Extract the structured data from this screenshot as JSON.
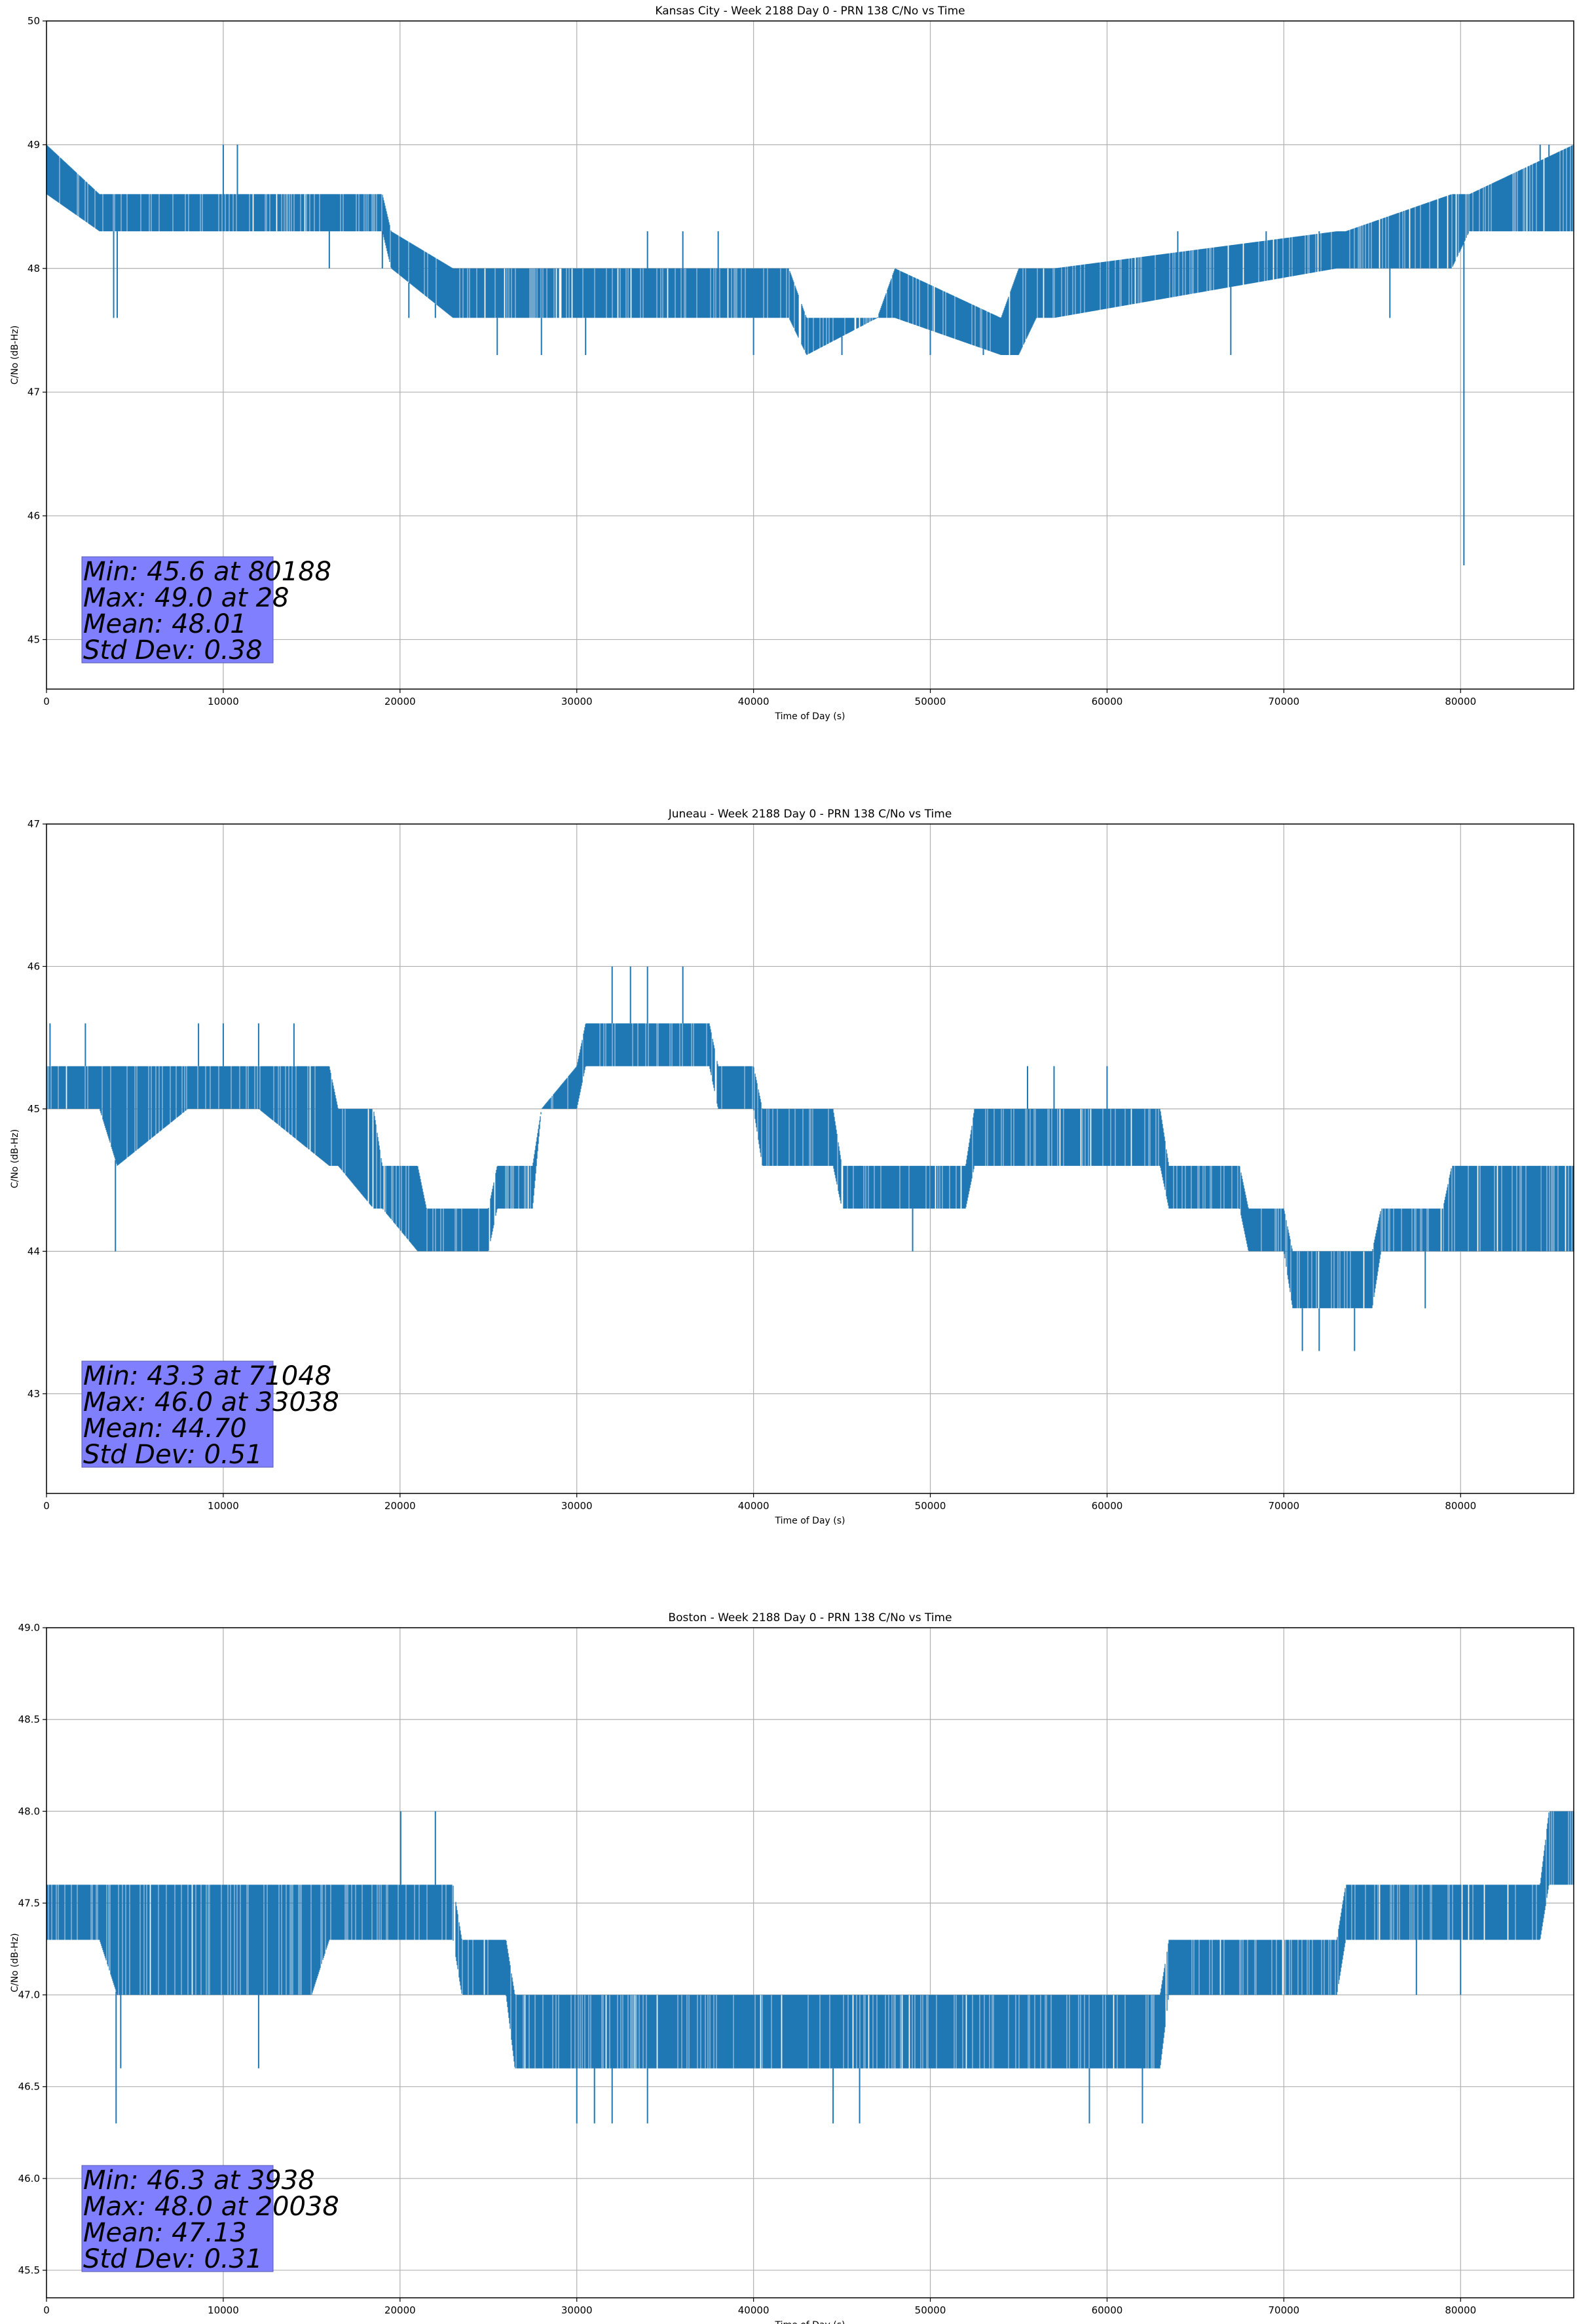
{
  "chart_data": [
    {
      "type": "line",
      "title": "Kansas City - Week 2188 Day 0 - PRN 138 C/No vs Time",
      "xlabel": "Time of Day (s)",
      "ylabel": "C/No (dB-Hz)",
      "xlim": [
        0,
        86400
      ],
      "ylim": [
        44.6,
        50
      ],
      "xticks": [
        0,
        10000,
        20000,
        30000,
        40000,
        50000,
        60000,
        70000,
        80000
      ],
      "xtick_labels": [
        "0",
        "10000",
        "20000",
        "30000",
        "40000",
        "50000",
        "60000",
        "70000",
        "80000"
      ],
      "yticks": [
        45,
        46,
        47,
        48,
        49,
        50
      ],
      "ytick_labels": [
        "45",
        "46",
        "47",
        "48",
        "49",
        "50"
      ],
      "grid": true,
      "series_color": "#1f77b4",
      "series": [
        {
          "name": "PRN 138 C/No",
          "band_x": [
            0,
            3000,
            4000,
            19000,
            19500,
            23000,
            42000,
            43000,
            47000,
            48000,
            54000,
            55000,
            56000,
            57000,
            73000,
            73500,
            79500,
            80500,
            86400
          ],
          "band_lo": [
            48.6,
            48.3,
            48.3,
            48.3,
            48.0,
            47.6,
            47.6,
            47.3,
            47.6,
            47.6,
            47.3,
            47.3,
            47.6,
            47.6,
            48.0,
            48.0,
            48.0,
            48.3,
            48.3
          ],
          "band_hi": [
            49.0,
            48.6,
            48.6,
            48.6,
            48.3,
            48.0,
            48.0,
            47.6,
            47.6,
            48.0,
            47.6,
            48.0,
            48.0,
            48.0,
            48.3,
            48.3,
            48.6,
            48.6,
            49.0
          ],
          "spikes": [
            [
              3800,
              47.6
            ],
            [
              4000,
              47.6
            ],
            [
              10000,
              49.0
            ],
            [
              10800,
              49.0
            ],
            [
              16000,
              48.0
            ],
            [
              19000,
              48.0
            ],
            [
              20500,
              47.6
            ],
            [
              22000,
              47.6
            ],
            [
              25500,
              47.3
            ],
            [
              28000,
              47.3
            ],
            [
              30500,
              47.3
            ],
            [
              34000,
              48.3
            ],
            [
              36000,
              48.3
            ],
            [
              38000,
              48.3
            ],
            [
              40000,
              47.3
            ],
            [
              45000,
              47.3
            ],
            [
              50000,
              47.3
            ],
            [
              53000,
              47.3
            ],
            [
              55000,
              47.3
            ],
            [
              64000,
              48.3
            ],
            [
              67000,
              47.3
            ],
            [
              69000,
              48.3
            ],
            [
              72000,
              48.3
            ],
            [
              76000,
              47.6
            ],
            [
              80188,
              45.6
            ],
            [
              84500,
              49.0
            ],
            [
              85000,
              49.0
            ]
          ]
        }
      ],
      "stats": [
        "Min: 45.6 at 80188",
        "Max: 49.0 at 28",
        "Mean: 48.01",
        "Std Dev: 0.38"
      ]
    },
    {
      "type": "line",
      "title": "Juneau - Week 2188 Day 0 - PRN 138 C/No vs Time",
      "xlabel": "Time of Day (s)",
      "ylabel": "C/No (dB-Hz)",
      "xlim": [
        0,
        86400
      ],
      "ylim": [
        42.3,
        47
      ],
      "xticks": [
        0,
        10000,
        20000,
        30000,
        40000,
        50000,
        60000,
        70000,
        80000
      ],
      "xtick_labels": [
        "0",
        "10000",
        "20000",
        "30000",
        "40000",
        "50000",
        "60000",
        "70000",
        "80000"
      ],
      "yticks": [
        43,
        44,
        45,
        46,
        47
      ],
      "ytick_labels": [
        "43",
        "44",
        "45",
        "46",
        "47"
      ],
      "grid": true,
      "series_color": "#1f77b4",
      "series": [
        {
          "name": "PRN 138 C/No",
          "band_x": [
            0,
            3000,
            4000,
            8000,
            12000,
            16000,
            16500,
            18500,
            19000,
            21000,
            21500,
            25000,
            25500,
            27500,
            28000,
            30000,
            30500,
            37500,
            38000,
            40000,
            40500,
            44500,
            45000,
            52000,
            52500,
            60000,
            60500,
            63000,
            63500,
            67500,
            68000,
            70000,
            70500,
            75000,
            75500,
            79000,
            79500,
            86400
          ],
          "band_lo": [
            45.0,
            45.0,
            44.6,
            45.0,
            45.0,
            44.6,
            44.6,
            44.3,
            44.3,
            44.0,
            44.0,
            44.0,
            44.3,
            44.3,
            45.0,
            45.0,
            45.3,
            45.3,
            45.0,
            45.0,
            44.6,
            44.6,
            44.3,
            44.3,
            44.6,
            44.6,
            44.6,
            44.6,
            44.3,
            44.3,
            44.0,
            44.0,
            43.6,
            43.6,
            44.0,
            44.0,
            44.0,
            44.0
          ],
          "band_hi": [
            45.3,
            45.3,
            45.3,
            45.3,
            45.3,
            45.3,
            45.0,
            45.0,
            44.6,
            44.6,
            44.3,
            44.3,
            44.6,
            44.6,
            45.0,
            45.3,
            45.6,
            45.6,
            45.3,
            45.3,
            45.0,
            45.0,
            44.6,
            44.6,
            45.0,
            45.0,
            45.0,
            45.0,
            44.6,
            44.6,
            44.3,
            44.3,
            44.0,
            44.0,
            44.3,
            44.3,
            44.6,
            44.6
          ],
          "spikes": [
            [
              200,
              45.6
            ],
            [
              2200,
              45.6
            ],
            [
              3900,
              44.0
            ],
            [
              8600,
              45.6
            ],
            [
              10000,
              45.6
            ],
            [
              12000,
              45.6
            ],
            [
              14000,
              45.6
            ],
            [
              32000,
              46.0
            ],
            [
              33038,
              46.0
            ],
            [
              34000,
              46.0
            ],
            [
              36000,
              46.0
            ],
            [
              46000,
              44.6
            ],
            [
              48000,
              44.3
            ],
            [
              49000,
              44.0
            ],
            [
              55500,
              45.3
            ],
            [
              57000,
              45.3
            ],
            [
              60000,
              45.3
            ],
            [
              71048,
              43.3
            ],
            [
              72000,
              43.3
            ],
            [
              74000,
              43.3
            ],
            [
              78000,
              43.6
            ],
            [
              84500,
              44.6
            ]
          ]
        }
      ],
      "stats": [
        "Min: 43.3 at 71048",
        "Max: 46.0 at 33038",
        "Mean: 44.70",
        "Std Dev: 0.51"
      ]
    },
    {
      "type": "line",
      "title": "Boston - Week 2188 Day 0 - PRN 138 C/No vs Time",
      "xlabel": "Time of Day (s)",
      "ylabel": "C/No (dB-Hz)",
      "xlim": [
        0,
        86400
      ],
      "ylim": [
        45.35,
        49.0
      ],
      "xticks": [
        0,
        10000,
        20000,
        30000,
        40000,
        50000,
        60000,
        70000,
        80000
      ],
      "xtick_labels": [
        "0",
        "10000",
        "20000",
        "30000",
        "40000",
        "50000",
        "60000",
        "70000",
        "80000"
      ],
      "yticks": [
        45.5,
        46.0,
        46.5,
        47.0,
        47.5,
        48.0,
        48.5,
        49.0
      ],
      "ytick_labels": [
        "45.5",
        "46.0",
        "46.5",
        "47.0",
        "47.5",
        "48.0",
        "48.5",
        "49.0"
      ],
      "grid": true,
      "series_color": "#1f77b4",
      "series": [
        {
          "name": "PRN 138 C/No",
          "band_x": [
            0,
            3000,
            4000,
            9000,
            15000,
            16000,
            23000,
            23500,
            26000,
            26500,
            63000,
            63500,
            73000,
            73500,
            84500,
            85000,
            86400
          ],
          "band_lo": [
            47.3,
            47.3,
            47.0,
            47.0,
            47.0,
            47.3,
            47.3,
            47.0,
            47.0,
            46.6,
            46.6,
            47.0,
            47.0,
            47.3,
            47.3,
            47.6,
            47.6
          ],
          "band_hi": [
            47.6,
            47.6,
            47.6,
            47.6,
            47.6,
            47.6,
            47.6,
            47.3,
            47.3,
            47.0,
            47.0,
            47.3,
            47.3,
            47.6,
            47.6,
            48.0,
            48.0
          ],
          "spikes": [
            [
              3938,
              46.3
            ],
            [
              4200,
              46.6
            ],
            [
              12000,
              46.6
            ],
            [
              20038,
              48.0
            ],
            [
              22000,
              48.0
            ],
            [
              30000,
              46.3
            ],
            [
              31000,
              46.3
            ],
            [
              32000,
              46.3
            ],
            [
              34000,
              46.3
            ],
            [
              44500,
              46.3
            ],
            [
              46000,
              46.3
            ],
            [
              59000,
              46.3
            ],
            [
              62000,
              46.3
            ],
            [
              77500,
              47.0
            ],
            [
              80000,
              47.0
            ],
            [
              84000,
              47.3
            ]
          ]
        }
      ],
      "stats": [
        "Min: 46.3 at 3938",
        "Max: 48.0 at 20038",
        "Mean: 47.13",
        "Std Dev: 0.31"
      ]
    }
  ]
}
